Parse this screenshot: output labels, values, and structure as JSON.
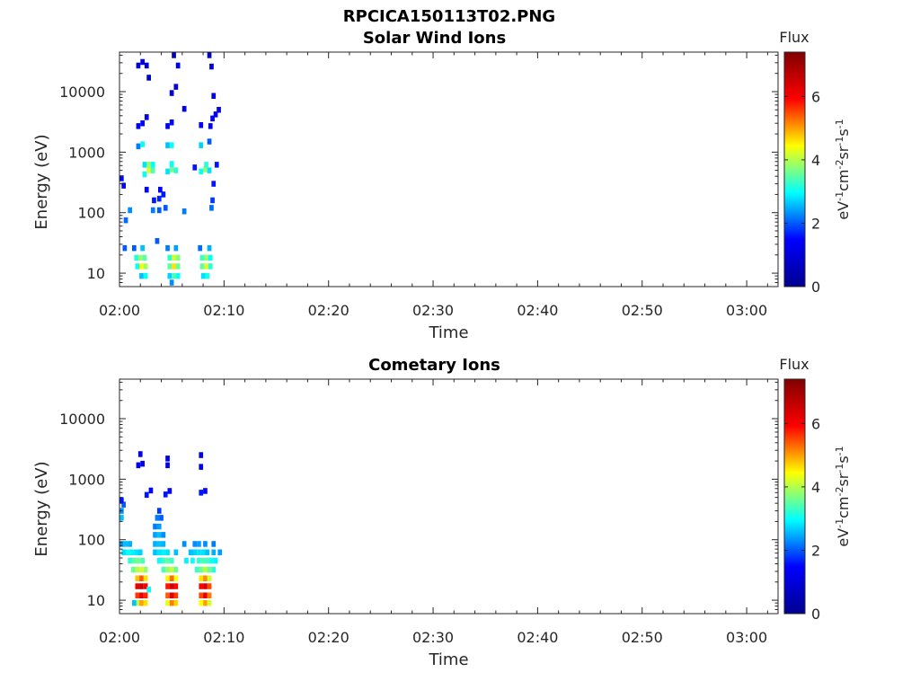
{
  "figure": {
    "title": "RPCICA150113T02.PNG"
  },
  "colormap": {
    "name": "jet",
    "stops": [
      "#00008F",
      "#0000FF",
      "#00FFFF",
      "#FFFF00",
      "#FF0000",
      "#800000"
    ]
  },
  "chart_data": [
    {
      "type": "heatmap",
      "title": "Solar Wind Ions",
      "xlabel": "Time",
      "ylabel": "Energy (eV)",
      "yscale": "log",
      "ylim": [
        6,
        45000
      ],
      "xlim": [
        "02:00",
        "03:03"
      ],
      "x_ticks": [
        "02:00",
        "02:10",
        "02:20",
        "02:30",
        "02:40",
        "02:50",
        "03:00"
      ],
      "y_ticks": [
        "10",
        "100",
        "1000",
        "10000"
      ],
      "colorbar": {
        "label": "Flux",
        "units": "eV-1cm-2sr-1s-1",
        "range": [
          0,
          7.4
        ],
        "ticks": [
          "0",
          "2",
          "4",
          "6"
        ]
      },
      "grid": false,
      "cells": [
        {
          "t": 2.1,
          "e": 9,
          "v": 2.6
        },
        {
          "t": 2.5,
          "e": 9,
          "v": 3.0
        },
        {
          "t": 4.8,
          "e": 9,
          "v": 2.7
        },
        {
          "t": 5.2,
          "e": 9,
          "v": 3.4
        },
        {
          "t": 5.6,
          "e": 9,
          "v": 3.0
        },
        {
          "t": 8.0,
          "e": 9,
          "v": 2.8
        },
        {
          "t": 8.4,
          "e": 9,
          "v": 3.1
        },
        {
          "t": 5.0,
          "e": 7,
          "v": 2.3
        },
        {
          "t": 1.7,
          "e": 13,
          "v": 3.0
        },
        {
          "t": 2.1,
          "e": 13,
          "v": 4.4
        },
        {
          "t": 2.5,
          "e": 13,
          "v": 3.9
        },
        {
          "t": 4.8,
          "e": 13,
          "v": 3.5
        },
        {
          "t": 5.2,
          "e": 13,
          "v": 4.6
        },
        {
          "t": 5.6,
          "e": 13,
          "v": 3.6
        },
        {
          "t": 7.9,
          "e": 13,
          "v": 3.5
        },
        {
          "t": 8.3,
          "e": 13,
          "v": 4.2
        },
        {
          "t": 8.7,
          "e": 13,
          "v": 3.2
        },
        {
          "t": 1.6,
          "e": 18,
          "v": 3.2
        },
        {
          "t": 2.0,
          "e": 18,
          "v": 3.8
        },
        {
          "t": 2.4,
          "e": 18,
          "v": 3.5
        },
        {
          "t": 4.8,
          "e": 18,
          "v": 3.2
        },
        {
          "t": 5.2,
          "e": 18,
          "v": 4.2
        },
        {
          "t": 5.6,
          "e": 18,
          "v": 3.7
        },
        {
          "t": 7.9,
          "e": 18,
          "v": 3.3
        },
        {
          "t": 8.3,
          "e": 18,
          "v": 3.8
        },
        {
          "t": 8.7,
          "e": 18,
          "v": 3.0
        },
        {
          "t": 1.4,
          "e": 26,
          "v": 2.0
        },
        {
          "t": 2.2,
          "e": 26,
          "v": 2.6
        },
        {
          "t": 4.6,
          "e": 26,
          "v": 2.2
        },
        {
          "t": 5.4,
          "e": 26,
          "v": 2.4
        },
        {
          "t": 7.7,
          "e": 26,
          "v": 2.1
        },
        {
          "t": 8.6,
          "e": 26,
          "v": 2.5
        },
        {
          "t": 3.6,
          "e": 34,
          "v": 2.0
        },
        {
          "t": 0.6,
          "e": 75,
          "v": 2.1
        },
        {
          "t": 1.0,
          "e": 110,
          "v": 2.3
        },
        {
          "t": 3.2,
          "e": 110,
          "v": 2.2
        },
        {
          "t": 3.8,
          "e": 110,
          "v": 2.0
        },
        {
          "t": 4.4,
          "e": 120,
          "v": 2.0
        },
        {
          "t": 6.2,
          "e": 105,
          "v": 2.2
        },
        {
          "t": 8.8,
          "e": 120,
          "v": 2.1
        },
        {
          "t": 3.3,
          "e": 160,
          "v": 1.6
        },
        {
          "t": 3.8,
          "e": 170,
          "v": 1.7
        },
        {
          "t": 4.2,
          "e": 200,
          "v": 1.6
        },
        {
          "t": 8.9,
          "e": 160,
          "v": 1.8
        },
        {
          "t": 2.6,
          "e": 240,
          "v": 1.5
        },
        {
          "t": 3.9,
          "e": 240,
          "v": 1.5
        },
        {
          "t": 9.0,
          "e": 300,
          "v": 1.6
        },
        {
          "t": 0.4,
          "e": 280,
          "v": 1.4
        },
        {
          "t": 0.2,
          "e": 370,
          "v": 1.5
        },
        {
          "t": 2.4,
          "e": 430,
          "v": 3.0
        },
        {
          "t": 2.8,
          "e": 500,
          "v": 4.2
        },
        {
          "t": 3.2,
          "e": 500,
          "v": 3.4
        },
        {
          "t": 4.6,
          "e": 480,
          "v": 2.8
        },
        {
          "t": 5.0,
          "e": 520,
          "v": 3.6
        },
        {
          "t": 5.4,
          "e": 500,
          "v": 3.2
        },
        {
          "t": 7.8,
          "e": 480,
          "v": 3.0
        },
        {
          "t": 8.2,
          "e": 520,
          "v": 3.8
        },
        {
          "t": 8.6,
          "e": 500,
          "v": 2.8
        },
        {
          "t": 2.4,
          "e": 620,
          "v": 2.8
        },
        {
          "t": 2.8,
          "e": 620,
          "v": 3.8
        },
        {
          "t": 3.2,
          "e": 620,
          "v": 3.0
        },
        {
          "t": 5.0,
          "e": 640,
          "v": 3.0
        },
        {
          "t": 8.3,
          "e": 620,
          "v": 3.2
        },
        {
          "t": 9.3,
          "e": 620,
          "v": 1.6
        },
        {
          "t": 7.2,
          "e": 560,
          "v": 1.6
        },
        {
          "t": 1.8,
          "e": 1250,
          "v": 2.2
        },
        {
          "t": 2.2,
          "e": 1350,
          "v": 3.0
        },
        {
          "t": 4.6,
          "e": 1300,
          "v": 2.6
        },
        {
          "t": 5.0,
          "e": 1300,
          "v": 3.0
        },
        {
          "t": 7.8,
          "e": 1300,
          "v": 2.7
        },
        {
          "t": 8.6,
          "e": 1500,
          "v": 2.0
        },
        {
          "t": 1.8,
          "e": 2700,
          "v": 1.4
        },
        {
          "t": 2.2,
          "e": 3000,
          "v": 1.5
        },
        {
          "t": 4.6,
          "e": 2700,
          "v": 1.4
        },
        {
          "t": 5.0,
          "e": 3100,
          "v": 1.5
        },
        {
          "t": 7.8,
          "e": 2800,
          "v": 1.4
        },
        {
          "t": 8.7,
          "e": 2700,
          "v": 1.3
        },
        {
          "t": 2.6,
          "e": 3800,
          "v": 1.3
        },
        {
          "t": 8.9,
          "e": 3600,
          "v": 1.3
        },
        {
          "t": 9.2,
          "e": 4200,
          "v": 1.3
        },
        {
          "t": 9.5,
          "e": 5000,
          "v": 1.2
        },
        {
          "t": 6.2,
          "e": 5200,
          "v": 1.2
        },
        {
          "t": 9.0,
          "e": 8500,
          "v": 1.1
        },
        {
          "t": 5.0,
          "e": 9500,
          "v": 0.9
        },
        {
          "t": 5.4,
          "e": 12000,
          "v": 0.9
        },
        {
          "t": 2.8,
          "e": 17000,
          "v": 0.8
        },
        {
          "t": 1.8,
          "e": 27000,
          "v": 0.9
        },
        {
          "t": 2.2,
          "e": 31000,
          "v": 1.0
        },
        {
          "t": 2.6,
          "e": 27000,
          "v": 0.8
        },
        {
          "t": 5.6,
          "e": 27000,
          "v": 0.9
        },
        {
          "t": 8.8,
          "e": 26000,
          "v": 0.9
        },
        {
          "t": 5.2,
          "e": 40000,
          "v": 0.6
        },
        {
          "t": 8.6,
          "e": 40000,
          "v": 0.7
        },
        {
          "t": 0.5,
          "e": 26,
          "v": 2.0
        }
      ]
    },
    {
      "type": "heatmap",
      "title": "Cometary Ions",
      "xlabel": "Time",
      "ylabel": "Energy (eV)",
      "yscale": "log",
      "ylim": [
        6,
        45000
      ],
      "xlim": [
        "02:00",
        "03:03"
      ],
      "x_ticks": [
        "02:00",
        "02:10",
        "02:20",
        "02:30",
        "02:40",
        "02:50",
        "03:00"
      ],
      "y_ticks": [
        "10",
        "100",
        "1000",
        "10000"
      ],
      "colorbar": {
        "label": "Flux",
        "units": "eV-1cm-2sr-1s-1",
        "range": [
          0,
          7.4
        ],
        "ticks": [
          "0",
          "2",
          "4",
          "6"
        ]
      },
      "grid": false,
      "cells": [
        {
          "t": 1.7,
          "e": 9,
          "v": 4.0
        },
        {
          "t": 2.1,
          "e": 9,
          "v": 5.0
        },
        {
          "t": 2.5,
          "e": 9,
          "v": 4.6
        },
        {
          "t": 4.6,
          "e": 9,
          "v": 4.3
        },
        {
          "t": 5.0,
          "e": 9,
          "v": 5.2
        },
        {
          "t": 5.4,
          "e": 9,
          "v": 4.7
        },
        {
          "t": 7.8,
          "e": 9,
          "v": 4.4
        },
        {
          "t": 8.2,
          "e": 9,
          "v": 5.0
        },
        {
          "t": 8.6,
          "e": 9,
          "v": 4.2
        },
        {
          "t": 1.7,
          "e": 12,
          "v": 5.6
        },
        {
          "t": 2.1,
          "e": 12,
          "v": 6.2
        },
        {
          "t": 2.5,
          "e": 12,
          "v": 5.7
        },
        {
          "t": 4.6,
          "e": 12,
          "v": 5.4
        },
        {
          "t": 5.0,
          "e": 12,
          "v": 6.3
        },
        {
          "t": 5.4,
          "e": 12,
          "v": 5.6
        },
        {
          "t": 7.8,
          "e": 12,
          "v": 5.5
        },
        {
          "t": 8.2,
          "e": 12,
          "v": 6.2
        },
        {
          "t": 8.6,
          "e": 12,
          "v": 5.2
        },
        {
          "t": 1.7,
          "e": 17,
          "v": 6.2
        },
        {
          "t": 2.1,
          "e": 17,
          "v": 6.6
        },
        {
          "t": 2.5,
          "e": 17,
          "v": 6.0
        },
        {
          "t": 4.6,
          "e": 17,
          "v": 5.8
        },
        {
          "t": 5.0,
          "e": 17,
          "v": 6.5
        },
        {
          "t": 5.4,
          "e": 17,
          "v": 5.9
        },
        {
          "t": 7.8,
          "e": 17,
          "v": 5.9
        },
        {
          "t": 8.2,
          "e": 17,
          "v": 6.4
        },
        {
          "t": 8.6,
          "e": 17,
          "v": 5.5
        },
        {
          "t": 1.7,
          "e": 23,
          "v": 4.8
        },
        {
          "t": 2.1,
          "e": 23,
          "v": 5.4
        },
        {
          "t": 2.5,
          "e": 23,
          "v": 4.6
        },
        {
          "t": 4.6,
          "e": 23,
          "v": 4.5
        },
        {
          "t": 5.0,
          "e": 23,
          "v": 5.3
        },
        {
          "t": 5.4,
          "e": 23,
          "v": 4.4
        },
        {
          "t": 7.8,
          "e": 23,
          "v": 4.6
        },
        {
          "t": 8.2,
          "e": 23,
          "v": 5.1
        },
        {
          "t": 8.6,
          "e": 23,
          "v": 4.2
        },
        {
          "t": 1.3,
          "e": 32,
          "v": 3.6
        },
        {
          "t": 1.7,
          "e": 32,
          "v": 4.0
        },
        {
          "t": 2.1,
          "e": 32,
          "v": 4.2
        },
        {
          "t": 2.5,
          "e": 32,
          "v": 3.8
        },
        {
          "t": 4.2,
          "e": 32,
          "v": 3.4
        },
        {
          "t": 4.6,
          "e": 32,
          "v": 3.8
        },
        {
          "t": 5.0,
          "e": 32,
          "v": 4.1
        },
        {
          "t": 5.4,
          "e": 32,
          "v": 3.6
        },
        {
          "t": 7.4,
          "e": 32,
          "v": 3.3
        },
        {
          "t": 7.8,
          "e": 32,
          "v": 3.6
        },
        {
          "t": 8.2,
          "e": 32,
          "v": 4.0
        },
        {
          "t": 8.6,
          "e": 32,
          "v": 3.6
        },
        {
          "t": 9.0,
          "e": 32,
          "v": 3.2
        },
        {
          "t": 1.0,
          "e": 45,
          "v": 3.2
        },
        {
          "t": 1.4,
          "e": 45,
          "v": 3.5
        },
        {
          "t": 1.8,
          "e": 45,
          "v": 3.6
        },
        {
          "t": 2.2,
          "e": 45,
          "v": 3.4
        },
        {
          "t": 3.8,
          "e": 45,
          "v": 3.0
        },
        {
          "t": 4.2,
          "e": 45,
          "v": 3.3
        },
        {
          "t": 4.6,
          "e": 45,
          "v": 3.5
        },
        {
          "t": 5.0,
          "e": 45,
          "v": 3.3
        },
        {
          "t": 6.4,
          "e": 45,
          "v": 2.9
        },
        {
          "t": 7.0,
          "e": 45,
          "v": 3.0
        },
        {
          "t": 7.6,
          "e": 45,
          "v": 3.2
        },
        {
          "t": 8.0,
          "e": 45,
          "v": 3.4
        },
        {
          "t": 8.4,
          "e": 45,
          "v": 3.3
        },
        {
          "t": 8.8,
          "e": 45,
          "v": 3.0
        },
        {
          "t": 9.2,
          "e": 45,
          "v": 2.9
        },
        {
          "t": 0.4,
          "e": 62,
          "v": 2.8
        },
        {
          "t": 0.8,
          "e": 62,
          "v": 3.0
        },
        {
          "t": 1.2,
          "e": 62,
          "v": 2.9
        },
        {
          "t": 1.6,
          "e": 62,
          "v": 2.8
        },
        {
          "t": 2.0,
          "e": 62,
          "v": 2.7
        },
        {
          "t": 3.4,
          "e": 62,
          "v": 2.6
        },
        {
          "t": 3.8,
          "e": 62,
          "v": 2.8
        },
        {
          "t": 4.2,
          "e": 62,
          "v": 2.9
        },
        {
          "t": 4.6,
          "e": 62,
          "v": 2.8
        },
        {
          "t": 5.4,
          "e": 62,
          "v": 2.6
        },
        {
          "t": 6.8,
          "e": 62,
          "v": 2.6
        },
        {
          "t": 7.2,
          "e": 62,
          "v": 2.7
        },
        {
          "t": 7.6,
          "e": 62,
          "v": 2.8
        },
        {
          "t": 8.0,
          "e": 62,
          "v": 2.8
        },
        {
          "t": 8.4,
          "e": 62,
          "v": 2.6
        },
        {
          "t": 9.0,
          "e": 62,
          "v": 2.5
        },
        {
          "t": 9.6,
          "e": 62,
          "v": 2.4
        },
        {
          "t": 0.2,
          "e": 85,
          "v": 2.4
        },
        {
          "t": 0.6,
          "e": 85,
          "v": 2.6
        },
        {
          "t": 1.0,
          "e": 85,
          "v": 2.5
        },
        {
          "t": 3.4,
          "e": 85,
          "v": 2.5
        },
        {
          "t": 3.8,
          "e": 85,
          "v": 2.6
        },
        {
          "t": 4.2,
          "e": 85,
          "v": 2.5
        },
        {
          "t": 6.2,
          "e": 85,
          "v": 2.3
        },
        {
          "t": 7.2,
          "e": 85,
          "v": 2.3
        },
        {
          "t": 7.6,
          "e": 85,
          "v": 2.4
        },
        {
          "t": 8.2,
          "e": 85,
          "v": 2.3
        },
        {
          "t": 9.0,
          "e": 85,
          "v": 2.2
        },
        {
          "t": 3.4,
          "e": 120,
          "v": 2.4
        },
        {
          "t": 3.8,
          "e": 120,
          "v": 2.6
        },
        {
          "t": 4.2,
          "e": 120,
          "v": 2.3
        },
        {
          "t": 3.4,
          "e": 165,
          "v": 2.2
        },
        {
          "t": 3.8,
          "e": 165,
          "v": 2.4
        },
        {
          "t": 3.6,
          "e": 230,
          "v": 2.2
        },
        {
          "t": 4.0,
          "e": 230,
          "v": 2.0
        },
        {
          "t": 3.8,
          "e": 300,
          "v": 1.8
        },
        {
          "t": 0.2,
          "e": 230,
          "v": 2.6
        },
        {
          "t": 0.2,
          "e": 300,
          "v": 2.3
        },
        {
          "t": 0.4,
          "e": 380,
          "v": 2.0
        },
        {
          "t": 0.2,
          "e": 450,
          "v": 1.6
        },
        {
          "t": 2.6,
          "e": 550,
          "v": 1.6
        },
        {
          "t": 3.0,
          "e": 650,
          "v": 1.5
        },
        {
          "t": 4.4,
          "e": 560,
          "v": 1.6
        },
        {
          "t": 4.8,
          "e": 640,
          "v": 1.5
        },
        {
          "t": 7.8,
          "e": 600,
          "v": 1.6
        },
        {
          "t": 8.2,
          "e": 640,
          "v": 1.5
        },
        {
          "t": 1.8,
          "e": 1700,
          "v": 1.2
        },
        {
          "t": 2.2,
          "e": 1800,
          "v": 1.3
        },
        {
          "t": 4.6,
          "e": 1700,
          "v": 1.2
        },
        {
          "t": 7.8,
          "e": 1600,
          "v": 1.2
        },
        {
          "t": 2.0,
          "e": 2600,
          "v": 1.1
        },
        {
          "t": 4.6,
          "e": 2200,
          "v": 1.1
        },
        {
          "t": 7.8,
          "e": 2500,
          "v": 1.1
        },
        {
          "t": 1.4,
          "e": 9,
          "v": 2.6
        },
        {
          "t": 2.8,
          "e": 15,
          "v": 3.0
        }
      ]
    }
  ]
}
